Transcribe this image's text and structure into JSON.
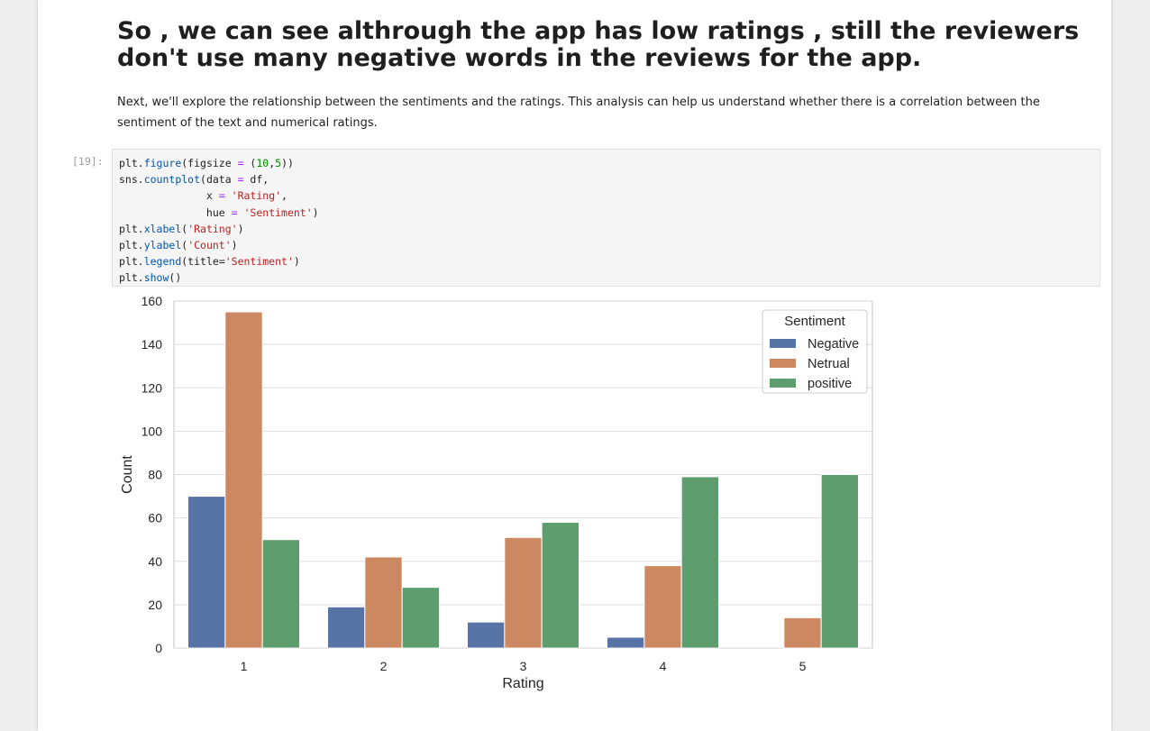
{
  "markdown": {
    "heading": "So , we can see althrough the app has low ratings , still the reviewers don't use many negative words in the reviews for the app.",
    "paragraph": "Next, we'll explore the relationship between the sentiments and the ratings. This analysis can help us understand whether there is a correlation between the sentiment of the text and numerical ratings."
  },
  "cell": {
    "prompt": "[19]:",
    "code": [
      {
        "text": "plt.figure(figsize = (10,5))"
      },
      {
        "text": "sns.countplot(data = df,"
      },
      {
        "text": "              x = 'Rating',"
      },
      {
        "text": "              hue = 'Sentiment')"
      },
      {
        "text": "plt.xlabel('Rating')"
      },
      {
        "text": "plt.ylabel('Count')"
      },
      {
        "text": "plt.legend(title='Sentiment')"
      },
      {
        "text": "plt.show()"
      }
    ]
  },
  "chart_data": {
    "type": "bar",
    "title": "",
    "xlabel": "Rating",
    "ylabel": "Count",
    "categories": [
      "1",
      "2",
      "3",
      "4",
      "5"
    ],
    "ylim": [
      0,
      160
    ],
    "yticks": [
      0,
      20,
      40,
      60,
      80,
      100,
      120,
      140,
      160
    ],
    "grid": true,
    "legend": {
      "title": "Sentiment",
      "placement": "top-right"
    },
    "series": [
      {
        "name": "Negative",
        "color": "#5874a6",
        "values": [
          70,
          19,
          12,
          5,
          0
        ]
      },
      {
        "name": "Netrual",
        "color": "#cc8860",
        "values": [
          155,
          42,
          51,
          38,
          14
        ]
      },
      {
        "name": "positive",
        "color": "#5e9e6e",
        "values": [
          50,
          28,
          58,
          79,
          80
        ]
      }
    ]
  }
}
